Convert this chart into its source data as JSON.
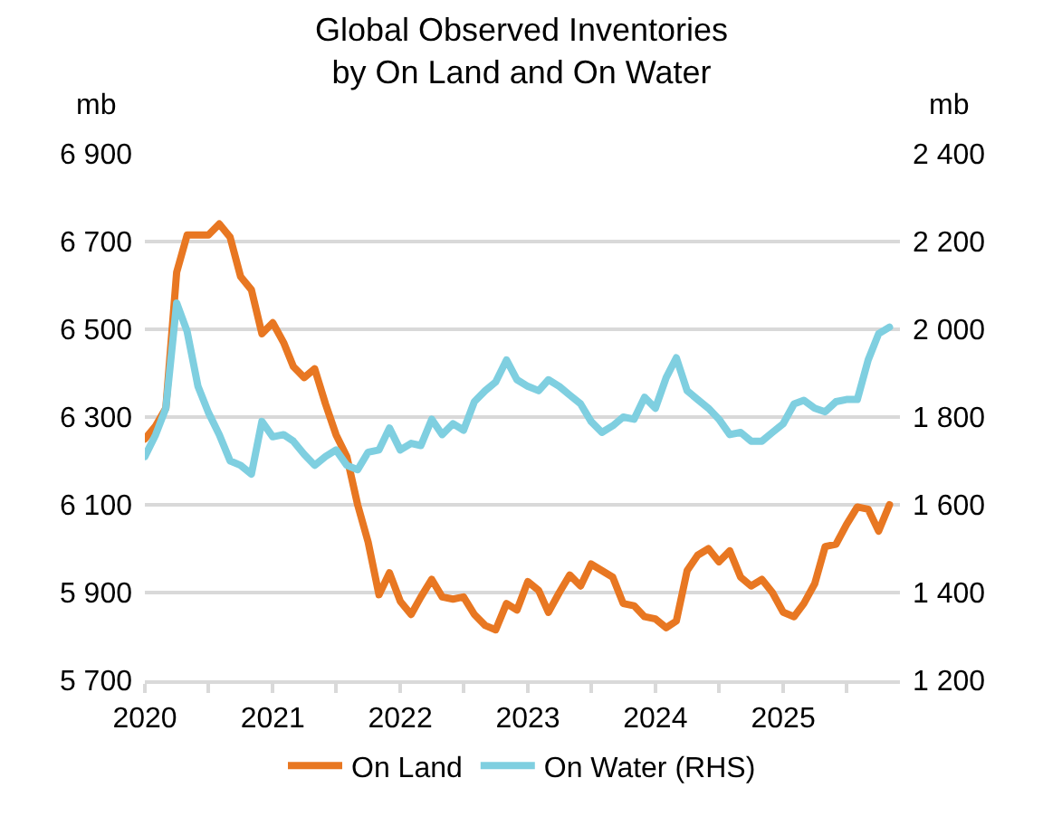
{
  "chart_data": {
    "type": "line",
    "title": "Global Observed Inventories\nby On Land and On Water",
    "ylabel": "mb",
    "y2label": "mb",
    "x": [
      "2020-01",
      "2020-02",
      "2020-03",
      "2020-04",
      "2020-05",
      "2020-06",
      "2020-07",
      "2020-08",
      "2020-09",
      "2020-10",
      "2020-11",
      "2020-12",
      "2021-01",
      "2021-02",
      "2021-03",
      "2021-04",
      "2021-05",
      "2021-06",
      "2021-07",
      "2021-08",
      "2021-09",
      "2021-10",
      "2021-11",
      "2021-12",
      "2022-01",
      "2022-02",
      "2022-03",
      "2022-04",
      "2022-05",
      "2022-06",
      "2022-07",
      "2022-08",
      "2022-09",
      "2022-10",
      "2022-11",
      "2022-12",
      "2023-01",
      "2023-02",
      "2023-03",
      "2023-04",
      "2023-05",
      "2023-06",
      "2023-07",
      "2023-08",
      "2023-09",
      "2023-10",
      "2023-11",
      "2023-12",
      "2024-01",
      "2024-02",
      "2024-03",
      "2024-04",
      "2024-05",
      "2024-06",
      "2024-07",
      "2024-08",
      "2024-09",
      "2024-10",
      "2024-11",
      "2024-12",
      "2025-01",
      "2025-02",
      "2025-03",
      "2025-04",
      "2025-05",
      "2025-06",
      "2025-07",
      "2025-08",
      "2025-09",
      "2025-10",
      "2025-11"
    ],
    "series": [
      {
        "name": "On Land",
        "color": "#e87722",
        "values": [
          6250,
          6280,
          6320,
          6630,
          6715,
          6715,
          6715,
          6740,
          6710,
          6620,
          6590,
          6490,
          6515,
          6470,
          6415,
          6390,
          6410,
          6330,
          6260,
          6210,
          6100,
          6015,
          5895,
          5945,
          5880,
          5850,
          5890,
          5930,
          5890,
          5885,
          5890,
          5850,
          5825,
          5815,
          5875,
          5860,
          5925,
          5905,
          5855,
          5900,
          5940,
          5915,
          5965,
          5950,
          5935,
          5875,
          5870,
          5845,
          5840,
          5820,
          5835,
          5950,
          5985,
          6000,
          5970,
          5995,
          5935,
          5915,
          5930,
          5900,
          5855,
          5845,
          5875,
          5920,
          6005,
          6010,
          6055,
          6095,
          6090,
          6040,
          6100
        ]
      },
      {
        "name": "On Water (RHS)",
        "color": "#7fcfe0",
        "axis": "y2",
        "values": [
          1710,
          1760,
          1820,
          2060,
          1995,
          1870,
          1810,
          1760,
          1700,
          1690,
          1670,
          1790,
          1755,
          1760,
          1745,
          1715,
          1690,
          1710,
          1725,
          1690,
          1680,
          1720,
          1725,
          1775,
          1725,
          1740,
          1735,
          1795,
          1760,
          1785,
          1770,
          1835,
          1860,
          1880,
          1930,
          1885,
          1870,
          1860,
          1885,
          1870,
          1850,
          1830,
          1790,
          1765,
          1780,
          1800,
          1795,
          1845,
          1820,
          1890,
          1935,
          1860,
          1840,
          1820,
          1795,
          1760,
          1765,
          1745,
          1745,
          1765,
          1785,
          1830,
          1838,
          1820,
          1812,
          1835,
          1840,
          1840,
          1930,
          1990,
          2005
        ]
      }
    ],
    "xlim": [
      "2020-01",
      "2025-12"
    ],
    "xticks": [
      {
        "value": "2020-01",
        "label": "2020"
      },
      {
        "value": "2020-07",
        "label": null
      },
      {
        "value": "2021-01",
        "label": "2021"
      },
      {
        "value": "2021-07",
        "label": null
      },
      {
        "value": "2022-01",
        "label": "2022"
      },
      {
        "value": "2022-07",
        "label": null
      },
      {
        "value": "2023-01",
        "label": "2023"
      },
      {
        "value": "2023-07",
        "label": null
      },
      {
        "value": "2024-01",
        "label": "2024"
      },
      {
        "value": "2024-07",
        "label": null
      },
      {
        "value": "2025-01",
        "label": "2025"
      },
      {
        "value": "2025-07",
        "label": null
      }
    ],
    "ylim": [
      5700,
      6900
    ],
    "yticks": [
      {
        "value": 5700,
        "label": "5 700"
      },
      {
        "value": 5900,
        "label": "5 900"
      },
      {
        "value": 6100,
        "label": "6 100"
      },
      {
        "value": 6300,
        "label": "6 300"
      },
      {
        "value": 6500,
        "label": "6 500"
      },
      {
        "value": 6700,
        "label": "6 700"
      },
      {
        "value": 6900,
        "label": "6 900"
      }
    ],
    "y2lim": [
      1200,
      2400
    ],
    "y2ticks": [
      {
        "value": 1200,
        "label": "1 200"
      },
      {
        "value": 1400,
        "label": "1 400"
      },
      {
        "value": 1600,
        "label": "1 600"
      },
      {
        "value": 1800,
        "label": "1 800"
      },
      {
        "value": 2000,
        "label": "2 000"
      },
      {
        "value": 2200,
        "label": "2 200"
      },
      {
        "value": 2400,
        "label": "2 400"
      }
    ],
    "grid": "y",
    "legend": "bottom",
    "marker": "none",
    "line_style": "solid"
  }
}
